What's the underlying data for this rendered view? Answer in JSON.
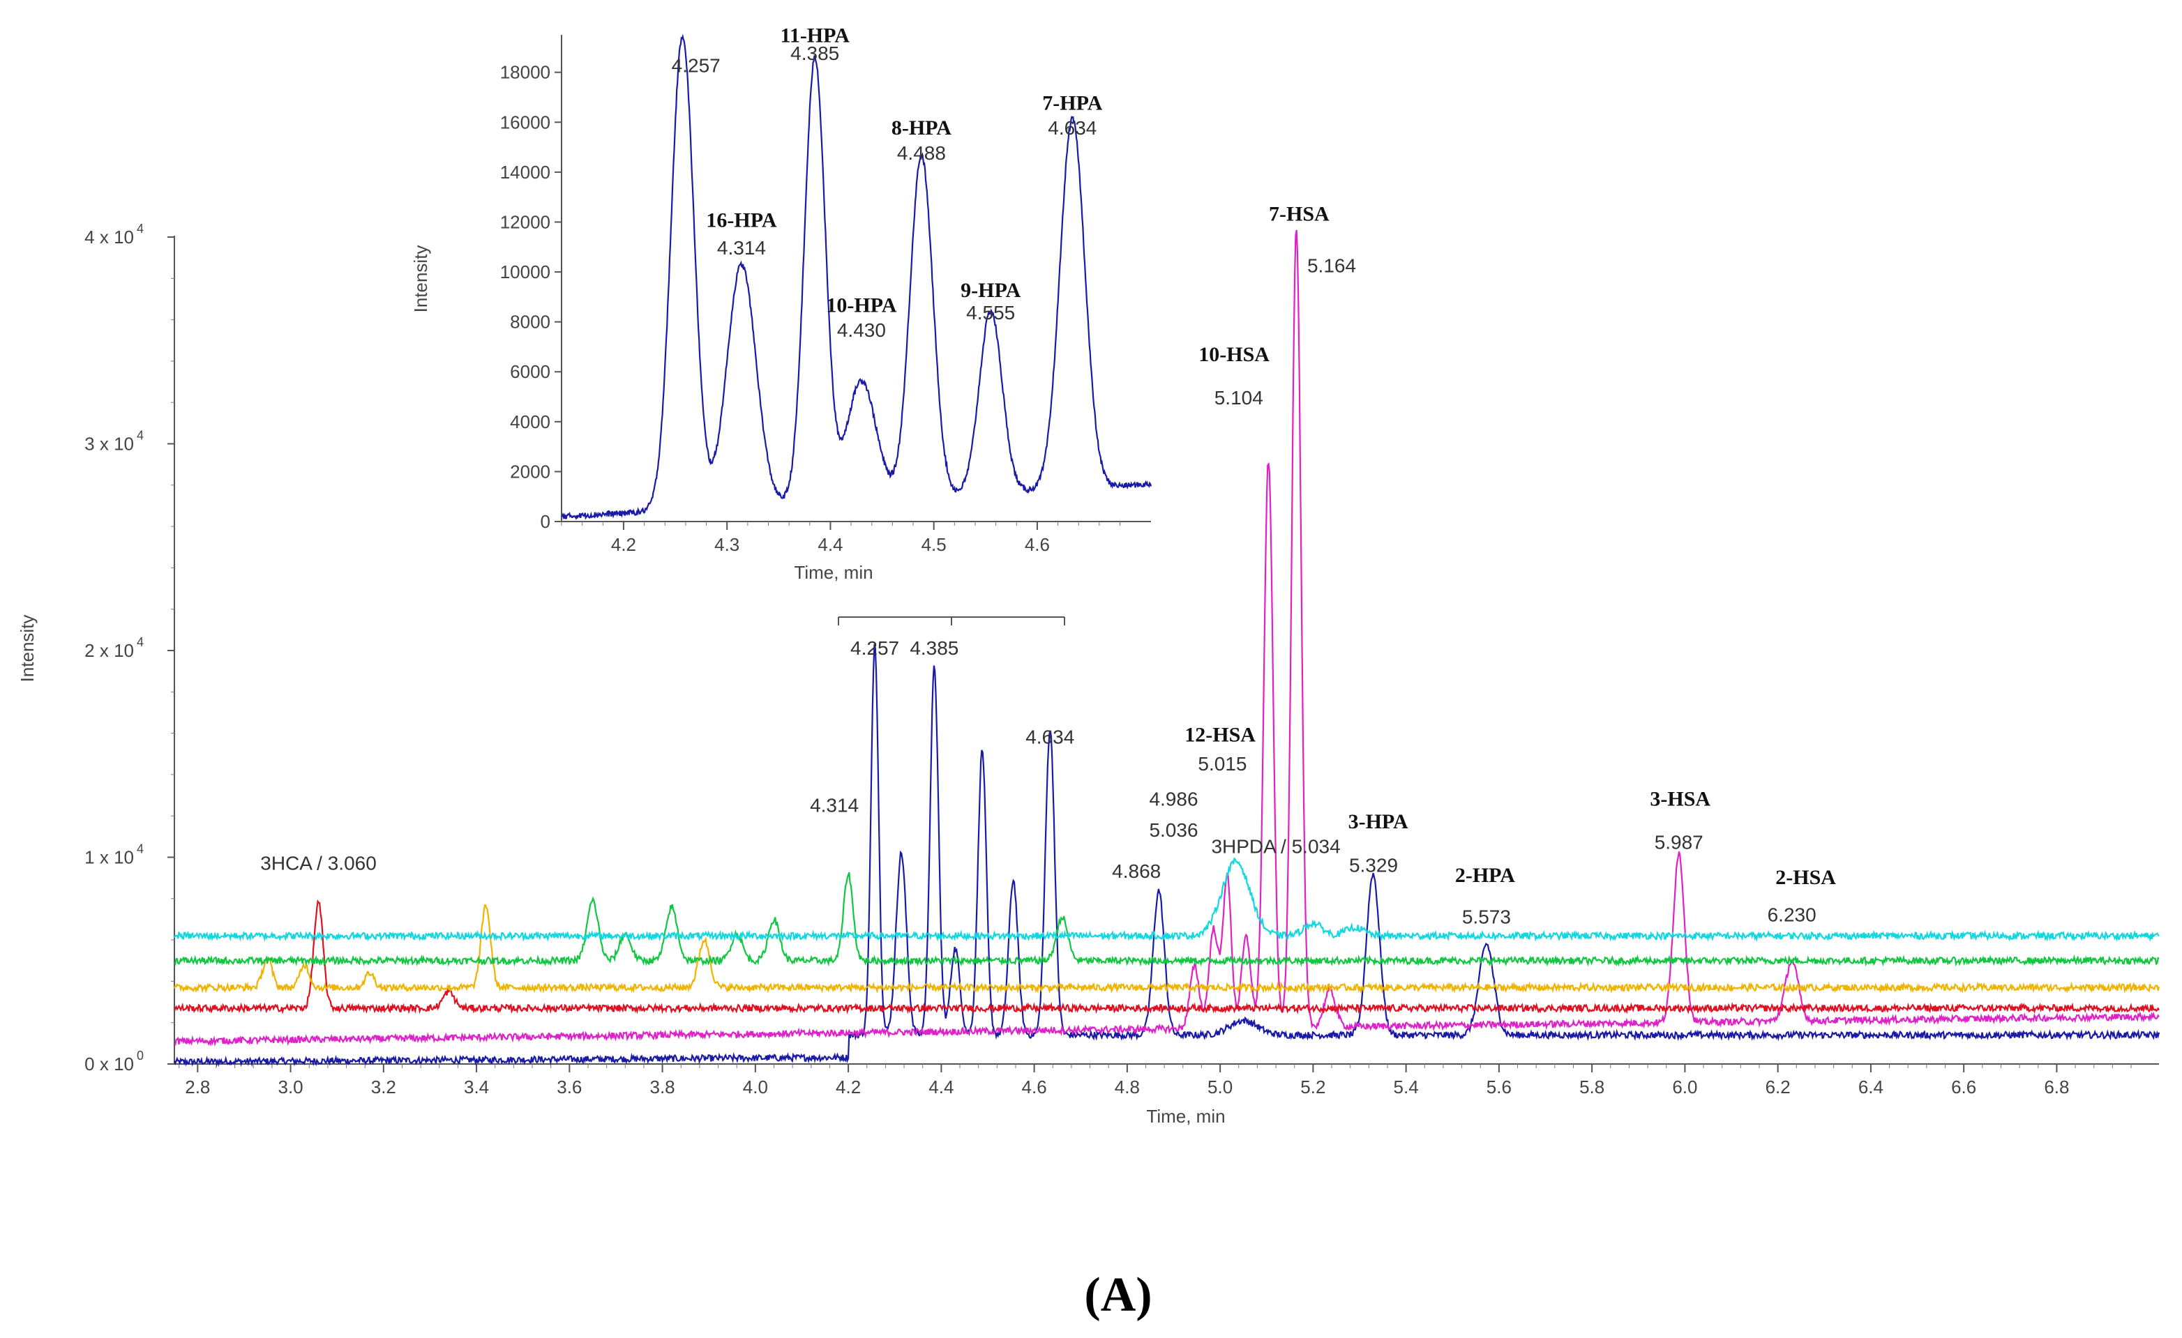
{
  "panel_label": "(A)",
  "chart_data": [
    {
      "type": "line",
      "title": "",
      "xlabel": "Time, min",
      "ylabel": "Intensity",
      "xlim": [
        2.75,
        7.02
      ],
      "ylim": [
        0,
        40000
      ],
      "x_ticks": [
        "2.8",
        "3.0",
        "3.2",
        "3.4",
        "3.6",
        "3.8",
        "4.0",
        "4.2",
        "4.4",
        "4.6",
        "4.8",
        "5.0",
        "5.2",
        "5.4",
        "5.6",
        "5.8",
        "6.0",
        "6.2",
        "6.4",
        "6.6",
        "6.8"
      ],
      "y_ticks": [
        {
          "value": 0,
          "mant": "0 x 10",
          "exp": "0"
        },
        {
          "value": 10000,
          "mant": "1 x 10",
          "exp": "4"
        },
        {
          "value": 20000,
          "mant": "2 x 10",
          "exp": "4"
        },
        {
          "value": 30000,
          "mant": "3 x 10",
          "exp": "4"
        },
        {
          "value": 40000,
          "mant": "4 x 10",
          "exp": "4"
        }
      ],
      "series": [
        {
          "name": "blue",
          "color": "#1a1aa8",
          "baseline_start": 100,
          "baseline_end": 1400,
          "peaks": [
            [
              4.257,
              19000,
              0.008
            ],
            [
              4.314,
              8800,
              0.011
            ],
            [
              4.385,
              17800,
              0.009
            ],
            [
              4.43,
              4200,
              0.01
            ],
            [
              4.488,
              13800,
              0.009
            ],
            [
              4.555,
              7500,
              0.01
            ],
            [
              4.634,
              14800,
              0.01
            ],
            [
              4.868,
              7000,
              0.012
            ],
            [
              5.05,
              700,
              0.03
            ],
            [
              5.329,
              7800,
              0.014
            ],
            [
              5.573,
              4400,
              0.016
            ]
          ]
        },
        {
          "name": "magenta",
          "color": "#e020c8",
          "baseline_start": 1100,
          "baseline_end": 2300,
          "peaks": [
            [
              4.945,
              3000,
              0.01
            ],
            [
              4.986,
              4800,
              0.01
            ],
            [
              5.015,
              7400,
              0.009
            ],
            [
              5.056,
              4400,
              0.01
            ],
            [
              5.104,
              27400,
              0.01
            ],
            [
              5.164,
              38600,
              0.01
            ],
            [
              5.236,
              1800,
              0.012
            ],
            [
              5.987,
              8200,
              0.012
            ],
            [
              6.23,
              2900,
              0.014
            ]
          ]
        },
        {
          "name": "red",
          "color": "#e01020",
          "baseline_start": 2700,
          "baseline_end": 2700,
          "peaks": [
            [
              3.06,
              5100,
              0.01
            ],
            [
              3.34,
              800,
              0.012
            ]
          ]
        },
        {
          "name": "yellow",
          "color": "#f0b400",
          "baseline_start": 3700,
          "baseline_end": 3700,
          "peaks": [
            [
              2.95,
              1400,
              0.01
            ],
            [
              3.03,
              1100,
              0.01
            ],
            [
              3.17,
              700,
              0.01
            ],
            [
              3.42,
              4000,
              0.01
            ],
            [
              3.89,
              2300,
              0.012
            ]
          ]
        },
        {
          "name": "green",
          "color": "#10c840",
          "baseline_start": 5000,
          "baseline_end": 5000,
          "peaks": [
            [
              3.65,
              2900,
              0.012
            ],
            [
              3.72,
              1300,
              0.012
            ],
            [
              3.82,
              2600,
              0.012
            ],
            [
              3.96,
              1300,
              0.012
            ],
            [
              4.04,
              2000,
              0.012
            ],
            [
              4.2,
              4200,
              0.01
            ],
            [
              4.66,
              2100,
              0.012
            ]
          ]
        },
        {
          "name": "cyan",
          "color": "#10d8e0",
          "baseline_start": 6200,
          "baseline_end": 6200,
          "x_start": 2.75,
          "peaks": [
            [
              5.034,
              3600,
              0.03
            ],
            [
              5.2,
              600,
              0.02
            ],
            [
              5.29,
              400,
              0.02
            ]
          ]
        }
      ],
      "peak_labels": [
        {
          "text": "3HCA / 3.060",
          "x": 3.06,
          "y": 9400,
          "kind": "rt"
        },
        {
          "text": "4.257",
          "x": 4.257,
          "y": 19800,
          "kind": "rt"
        },
        {
          "text": "4.385",
          "x": 4.385,
          "y": 19800,
          "kind": "rt"
        },
        {
          "text": "4.314",
          "x": 4.17,
          "y": 12200,
          "kind": "rt"
        },
        {
          "text": "4.634",
          "x": 4.634,
          "y": 15500,
          "kind": "rt"
        },
        {
          "text": "4.868",
          "x": 4.82,
          "y": 9000,
          "kind": "rt"
        },
        {
          "text": "4.986",
          "x": 4.9,
          "y": 12500,
          "kind": "rt"
        },
        {
          "text": "5.036",
          "x": 4.9,
          "y": 11000,
          "kind": "rt"
        },
        {
          "text": "5.015",
          "x": 5.005,
          "y": 14200,
          "kind": "rt"
        },
        {
          "text": "3HPDA / 5.034",
          "x": 5.12,
          "y": 10200,
          "kind": "rt"
        },
        {
          "text": "5.104",
          "x": 5.04,
          "y": 31900,
          "kind": "rt"
        },
        {
          "text": "5.164",
          "x": 5.24,
          "y": 38300,
          "kind": "rt"
        },
        {
          "text": "5.329",
          "x": 5.33,
          "y": 9300,
          "kind": "rt"
        },
        {
          "text": "5.573",
          "x": 5.573,
          "y": 6800,
          "kind": "rt"
        },
        {
          "text": "5.987",
          "x": 5.987,
          "y": 10400,
          "kind": "rt"
        },
        {
          "text": "6.230",
          "x": 6.23,
          "y": 6900,
          "kind": "rt"
        },
        {
          "text": "12-HSA",
          "x": 5.0,
          "y": 15600,
          "kind": "cmp"
        },
        {
          "text": "10-HSA",
          "x": 5.03,
          "y": 34000,
          "kind": "cmp"
        },
        {
          "text": "7-HSA",
          "x": 5.17,
          "y": 40800,
          "kind": "cmp"
        },
        {
          "text": "3-HPA",
          "x": 5.34,
          "y": 11400,
          "kind": "cmp"
        },
        {
          "text": "2-HPA",
          "x": 5.57,
          "y": 8800,
          "kind": "cmp"
        },
        {
          "text": "3-HSA",
          "x": 5.99,
          "y": 12500,
          "kind": "cmp"
        },
        {
          "text": "2-HSA",
          "x": 6.26,
          "y": 8700,
          "kind": "cmp"
        }
      ]
    },
    {
      "type": "line",
      "title": "",
      "xlabel": "Time, min",
      "ylabel": "Intensity",
      "xlim": [
        4.14,
        4.71
      ],
      "ylim": [
        0,
        19500
      ],
      "x_ticks": [
        "4.2",
        "4.3",
        "4.4",
        "4.5",
        "4.6"
      ],
      "y_ticks": [
        "0",
        "2000",
        "4000",
        "6000",
        "8000",
        "10000",
        "12000",
        "14000",
        "16000",
        "18000"
      ],
      "series": [
        {
          "name": "blue",
          "color": "#1a1aa8",
          "baseline_start": 200,
          "baseline_end": 1500,
          "peaks": [
            [
              4.257,
              19000,
              0.011
            ],
            [
              4.314,
              9700,
              0.014
            ],
            [
              4.385,
              17800,
              0.01
            ],
            [
              4.43,
              4800,
              0.014
            ],
            [
              4.488,
              13700,
              0.011
            ],
            [
              4.555,
              7300,
              0.011
            ],
            [
              4.634,
              14800,
              0.012
            ]
          ]
        }
      ],
      "peak_labels": [
        {
          "text": "4.257",
          "x": 4.27,
          "y": 18000,
          "kind": "rt"
        },
        {
          "text": "4.385",
          "x": 4.385,
          "y": 18500,
          "kind": "rt"
        },
        {
          "text": "4.314",
          "x": 4.314,
          "y": 10700,
          "kind": "rt"
        },
        {
          "text": "4.430",
          "x": 4.43,
          "y": 7400,
          "kind": "rt"
        },
        {
          "text": "4.488",
          "x": 4.488,
          "y": 14500,
          "kind": "rt"
        },
        {
          "text": "4.555",
          "x": 4.555,
          "y": 8100,
          "kind": "rt"
        },
        {
          "text": "4.634",
          "x": 4.634,
          "y": 15500,
          "kind": "rt"
        },
        {
          "text": "11-HPA",
          "x": 4.385,
          "y": 19200,
          "kind": "cmp"
        },
        {
          "text": "16-HPA",
          "x": 4.314,
          "y": 11800,
          "kind": "cmp"
        },
        {
          "text": "8-HPA",
          "x": 4.488,
          "y": 15500,
          "kind": "cmp"
        },
        {
          "text": "10-HPA",
          "x": 4.43,
          "y": 8400,
          "kind": "cmp"
        },
        {
          "text": "9-HPA",
          "x": 4.555,
          "y": 9000,
          "kind": "cmp"
        },
        {
          "text": "7-HPA",
          "x": 4.634,
          "y": 16500,
          "kind": "cmp"
        }
      ]
    }
  ]
}
